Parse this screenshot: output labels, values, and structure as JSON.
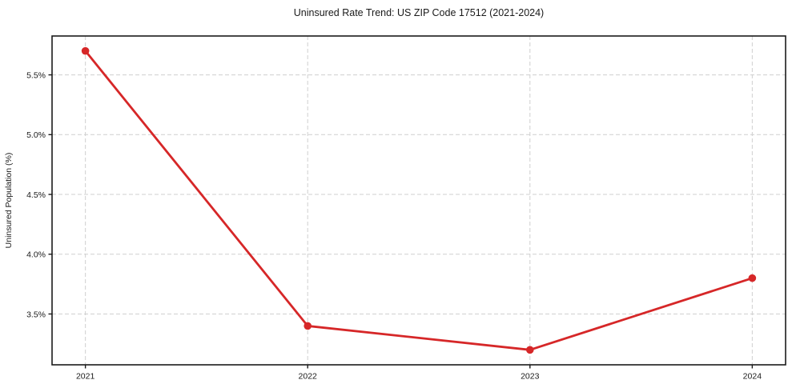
{
  "chart_data": {
    "type": "line",
    "title": "Uninsured Rate Trend: US ZIP Code 17512 (2021-2024)",
    "xlabel": "",
    "ylabel": "Uninsured Population (%)",
    "categories": [
      "2021",
      "2022",
      "2023",
      "2024"
    ],
    "x": [
      2021,
      2022,
      2023,
      2024
    ],
    "series": [
      {
        "name": "Uninsured rate",
        "values": [
          5.7,
          3.4,
          3.2,
          3.8
        ],
        "color": "#d62728",
        "marker": "circle",
        "line_width": 2.8,
        "marker_radius": 4.8
      }
    ],
    "yticks": [
      3.5,
      4.0,
      4.5,
      5.0,
      5.5
    ],
    "ytick_labels": [
      "3.5%",
      "4.0%",
      "4.5%",
      "5.0%",
      "5.5%"
    ],
    "ylim": [
      3.075,
      5.825
    ],
    "xlim": [
      2020.85,
      2024.15
    ],
    "grid": true,
    "grid_style": "dashed",
    "grid_color": "#cfcfcf",
    "axis_color": "#1a1a1a",
    "tick_color": "#1a1a1a",
    "background": "#ffffff",
    "legend_position": "none"
  }
}
